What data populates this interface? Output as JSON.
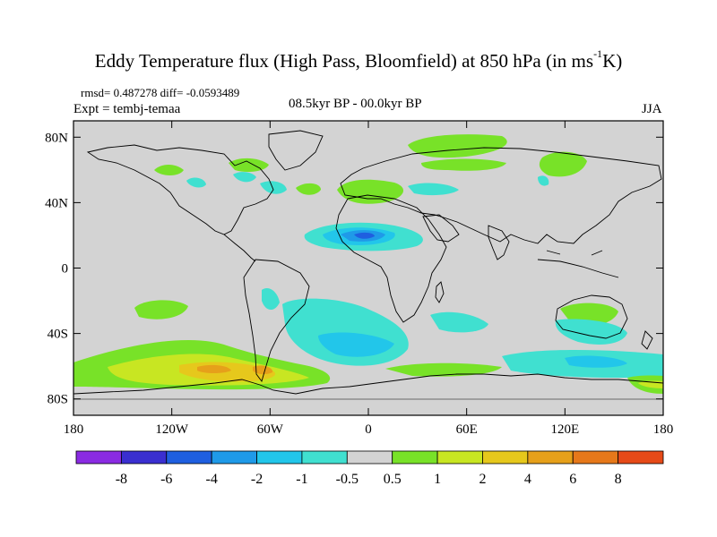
{
  "title": {
    "main": "Eddy Temperature flux (High Pass, Bloomfield) at 850 hPa (in ms",
    "superscript": "-1",
    "unit_end": "K)"
  },
  "stats_line": "rmsd= 0.487278 diff= -0.0593489",
  "experiment": "Expt = tembj-temaa",
  "period": "08.5kyr BP - 00.0kyr BP",
  "season": "JJA",
  "y_ticks": [
    {
      "label": "80N",
      "value": 80
    },
    {
      "label": "40N",
      "value": 40
    },
    {
      "label": "0",
      "value": 0
    },
    {
      "label": "40S",
      "value": -40
    },
    {
      "label": "80S",
      "value": -80
    }
  ],
  "x_ticks": [
    {
      "label": "180",
      "value": -180
    },
    {
      "label": "120W",
      "value": -120
    },
    {
      "label": "60W",
      "value": -60
    },
    {
      "label": "0",
      "value": 0
    },
    {
      "label": "60E",
      "value": 60
    },
    {
      "label": "120E",
      "value": 120
    },
    {
      "label": "180",
      "value": 180
    }
  ],
  "colorbar": {
    "colors": [
      "#8a2be2",
      "#3a2fd0",
      "#1f5fe0",
      "#1f9ae8",
      "#22c6ea",
      "#40e0d0",
      "#d3d3d3",
      "#78e228",
      "#c8e622",
      "#e6c81c",
      "#e6a01a",
      "#e6781a",
      "#e64a18"
    ],
    "labels": [
      "-8",
      "-6",
      "-4",
      "-2",
      "-1",
      "-0.5",
      "0.5",
      "1",
      "2",
      "4",
      "6",
      "8"
    ]
  },
  "colors": {
    "background_field": "#d3d3d3",
    "frame": "#000000"
  }
}
